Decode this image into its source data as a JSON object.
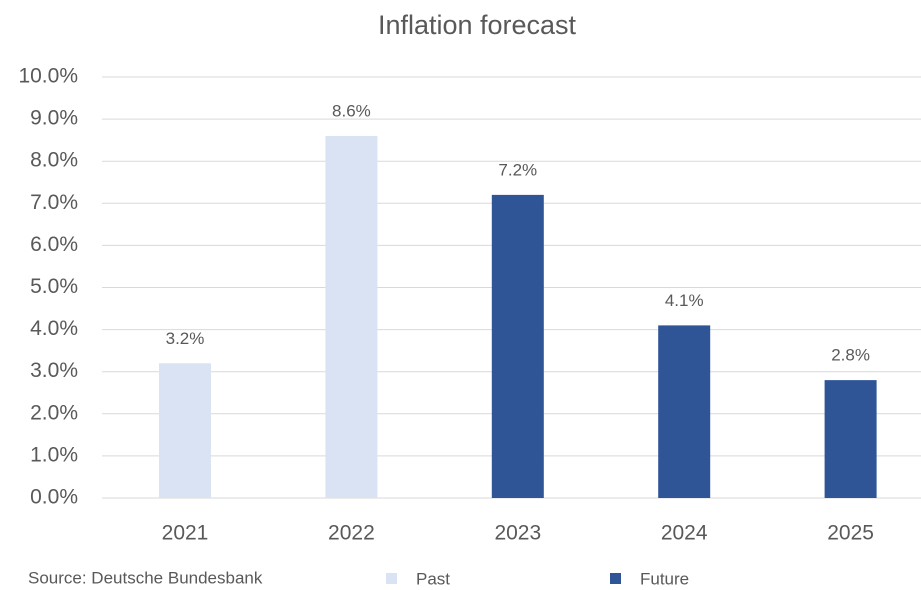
{
  "chart_data": {
    "type": "bar",
    "title": "Inflation forecast",
    "categories": [
      "2021",
      "2022",
      "2023",
      "2024",
      "2025"
    ],
    "series": [
      {
        "name": "Past",
        "color": "#dae3f3",
        "values": [
          3.2,
          8.6,
          null,
          null,
          null
        ],
        "value_labels": [
          "3.2%",
          "8.6%",
          null,
          null,
          null
        ]
      },
      {
        "name": "Future",
        "color": "#2f5597",
        "values": [
          null,
          null,
          7.2,
          4.1,
          2.8
        ],
        "value_labels": [
          null,
          null,
          "7.2%",
          "4.1%",
          "2.8%"
        ]
      }
    ],
    "ylim": [
      0,
      10
    ],
    "yticks": [
      {
        "value": 0,
        "label": "0.0%"
      },
      {
        "value": 1,
        "label": "1.0%"
      },
      {
        "value": 2,
        "label": "2.0%"
      },
      {
        "value": 3,
        "label": "3.0%"
      },
      {
        "value": 4,
        "label": "4.0%"
      },
      {
        "value": 5,
        "label": "5.0%"
      },
      {
        "value": 6,
        "label": "6.0%"
      },
      {
        "value": 7,
        "label": "7.0%"
      },
      {
        "value": 8,
        "label": "8.0%"
      },
      {
        "value": 9,
        "label": "9.0%"
      },
      {
        "value": 10,
        "label": "10.0%"
      }
    ],
    "grid": true,
    "source": "Source: Deutsche Bundesbank"
  }
}
